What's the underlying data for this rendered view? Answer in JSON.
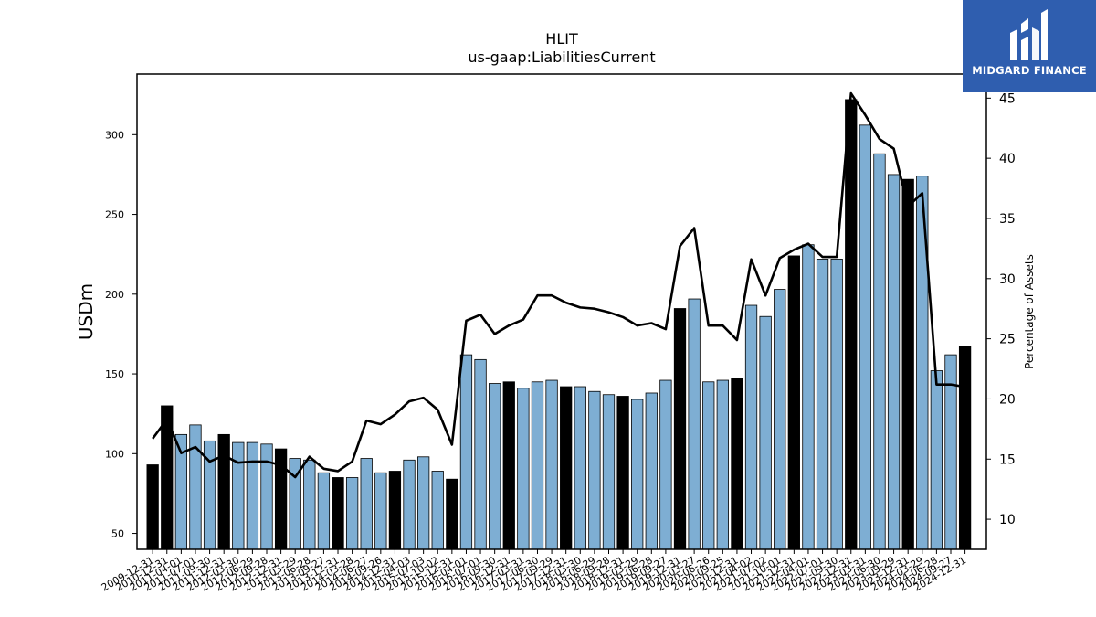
{
  "brand": {
    "name": "MIDGARD FINANCE",
    "logo_icon": "midgard-m-logo-icon",
    "bg_color": "#2f5eaf"
  },
  "chart_data": {
    "type": "bar",
    "title": "HLIT",
    "subtitle": "us-gaap:LiabilitiesCurrent",
    "ylabel": "USDm",
    "y2label": "Percentage of Assets",
    "ylim": [
      40,
      338
    ],
    "y2lim": [
      7.5,
      47.0
    ],
    "yticks": [
      50,
      100,
      150,
      200,
      250,
      300
    ],
    "y2ticks": [
      10,
      15,
      20,
      25,
      30,
      35,
      40,
      45
    ],
    "colors": {
      "annual": "#000000",
      "quarterly": "#7eaed3",
      "line": "#000000"
    },
    "categories": [
      "2009-12-31",
      "2010-12-31",
      "2011-04-01",
      "2011-07-01",
      "2011-09-30",
      "2011-12-31",
      "2012-03-30",
      "2012-06-29",
      "2012-09-28",
      "2012-12-31",
      "2013-03-29",
      "2013-06-28",
      "2013-09-27",
      "2013-12-31",
      "2014-03-28",
      "2014-06-27",
      "2014-09-26",
      "2014-12-31",
      "2015-04-03",
      "2015-07-03",
      "2015-10-02",
      "2015-12-31",
      "2016-04-01",
      "2016-07-01",
      "2016-09-30",
      "2016-12-31",
      "2017-03-31",
      "2017-06-30",
      "2017-09-29",
      "2017-12-31",
      "2018-03-30",
      "2018-06-29",
      "2018-09-28",
      "2018-12-31",
      "2019-03-29",
      "2019-06-28",
      "2019-09-27",
      "2019-12-31",
      "2020-03-27",
      "2020-06-26",
      "2020-09-25",
      "2020-12-31",
      "2021-04-02",
      "2021-07-02",
      "2021-10-01",
      "2021-12-31",
      "2022-04-01",
      "2022-07-01",
      "2022-09-30",
      "2022-12-31",
      "2023-03-31",
      "2023-06-30",
      "2023-09-29",
      "2023-12-31",
      "2024-03-29",
      "2024-06-28",
      "2024-09-27",
      "2024-12-31"
    ],
    "values": [
      93,
      130,
      112,
      118,
      108,
      112,
      107,
      107,
      106,
      103,
      97,
      96,
      88,
      85,
      85,
      97,
      88,
      89,
      96,
      98,
      89,
      84,
      162,
      159,
      144,
      145,
      141,
      145,
      146,
      142,
      142,
      139,
      137,
      136,
      134,
      138,
      146,
      191,
      197,
      145,
      146,
      147,
      193,
      186,
      203,
      224,
      231,
      222,
      222,
      322,
      306,
      288,
      275,
      272,
      274,
      152,
      162,
      167
    ],
    "period_type": [
      "A",
      "A",
      "Q",
      "Q",
      "Q",
      "A",
      "Q",
      "Q",
      "Q",
      "A",
      "Q",
      "Q",
      "Q",
      "A",
      "Q",
      "Q",
      "Q",
      "A",
      "Q",
      "Q",
      "Q",
      "A",
      "Q",
      "Q",
      "Q",
      "A",
      "Q",
      "Q",
      "Q",
      "A",
      "Q",
      "Q",
      "Q",
      "A",
      "Q",
      "Q",
      "Q",
      "A",
      "Q",
      "Q",
      "Q",
      "A",
      "Q",
      "Q",
      "Q",
      "A",
      "Q",
      "Q",
      "Q",
      "A",
      "Q",
      "Q",
      "Q",
      "A",
      "Q",
      "Q",
      "Q",
      "A"
    ],
    "pct_of_assets": [
      16.7,
      18.3,
      15.5,
      16.0,
      14.8,
      15.3,
      14.7,
      14.8,
      14.8,
      14.5,
      13.5,
      15.2,
      14.2,
      14.0,
      14.8,
      18.2,
      17.9,
      18.7,
      19.8,
      20.1,
      19.1,
      16.2,
      26.5,
      27.0,
      25.4,
      26.1,
      26.6,
      28.6,
      28.6,
      28.0,
      27.6,
      27.5,
      27.2,
      26.8,
      26.1,
      26.3,
      25.8,
      32.7,
      34.2,
      26.1,
      26.1,
      24.9,
      31.6,
      28.6,
      31.7,
      32.4,
      32.9,
      31.8,
      31.8,
      45.4,
      43.6,
      41.6,
      40.8,
      36.0,
      37.1,
      21.2,
      21.2,
      21.0
    ]
  }
}
